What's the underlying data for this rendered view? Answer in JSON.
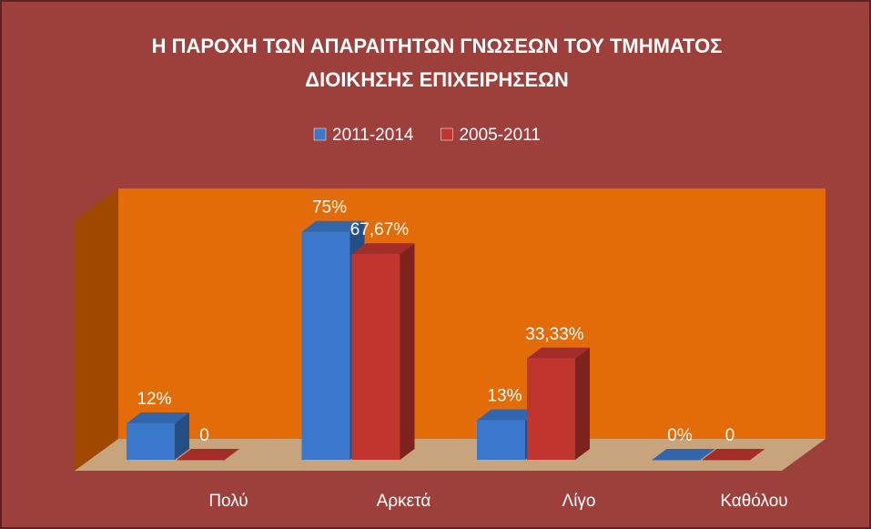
{
  "chart_data": {
    "type": "bar3d",
    "title": "Η ΠΑΡΟΧΗ ΤΩΝ ΑΠΑΡΑΙΤΗΤΩΝ ΓΝΩΣΕΩΝ ΤΟΥ ΤΜΗΜΑΤΟΣ ΔΙΟΙΚΗΣΗΣ ΕΠΙΧΕΙΡΗΣΕΩΝ",
    "categories": [
      "Πολύ",
      "Αρκετά",
      "Λίγο",
      "Καθόλου"
    ],
    "series": [
      {
        "name": "2011-2014",
        "color": "#3a78cc",
        "values": [
          12,
          75,
          13,
          0
        ],
        "value_labels": [
          "12%",
          "75%",
          "13%",
          "0%"
        ]
      },
      {
        "name": "2005-2011",
        "color": "#c0362f",
        "values": [
          0,
          67.67,
          33.33,
          0
        ],
        "value_labels": [
          "0",
          "67,67%",
          "33,33%",
          "0"
        ]
      }
    ],
    "ylim": [
      0,
      80
    ],
    "legend": "top"
  }
}
